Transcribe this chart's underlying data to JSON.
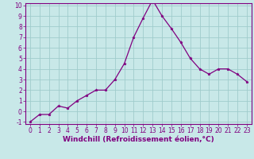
{
  "x": [
    0,
    1,
    2,
    3,
    4,
    5,
    6,
    7,
    8,
    9,
    10,
    11,
    12,
    13,
    14,
    15,
    16,
    17,
    18,
    19,
    20,
    21,
    22,
    23
  ],
  "y": [
    -1,
    -0.3,
    -0.3,
    0.5,
    0.3,
    1.0,
    1.5,
    2.0,
    2.0,
    3.0,
    4.5,
    7.0,
    8.8,
    10.5,
    9.0,
    7.8,
    6.5,
    5.0,
    4.0,
    3.5,
    4.0,
    4.0,
    3.5,
    2.8
  ],
  "line_color": "#800080",
  "marker": "*",
  "marker_color": "#800080",
  "bg_color": "#c8e8e8",
  "grid_color": "#a0cccc",
  "xlabel": "Windchill (Refroidissement éolien,°C)",
  "xlabel_color": "#800080",
  "tick_color": "#800080",
  "ylim": [
    -1,
    10
  ],
  "xlim": [
    -0.5,
    23.5
  ],
  "yticks": [
    -1,
    0,
    1,
    2,
    3,
    4,
    5,
    6,
    7,
    8,
    9,
    10
  ],
  "xticks": [
    0,
    1,
    2,
    3,
    4,
    5,
    6,
    7,
    8,
    9,
    10,
    11,
    12,
    13,
    14,
    15,
    16,
    17,
    18,
    19,
    20,
    21,
    22,
    23
  ],
  "tick_fontsize": 5.5,
  "xlabel_fontsize": 6.5
}
